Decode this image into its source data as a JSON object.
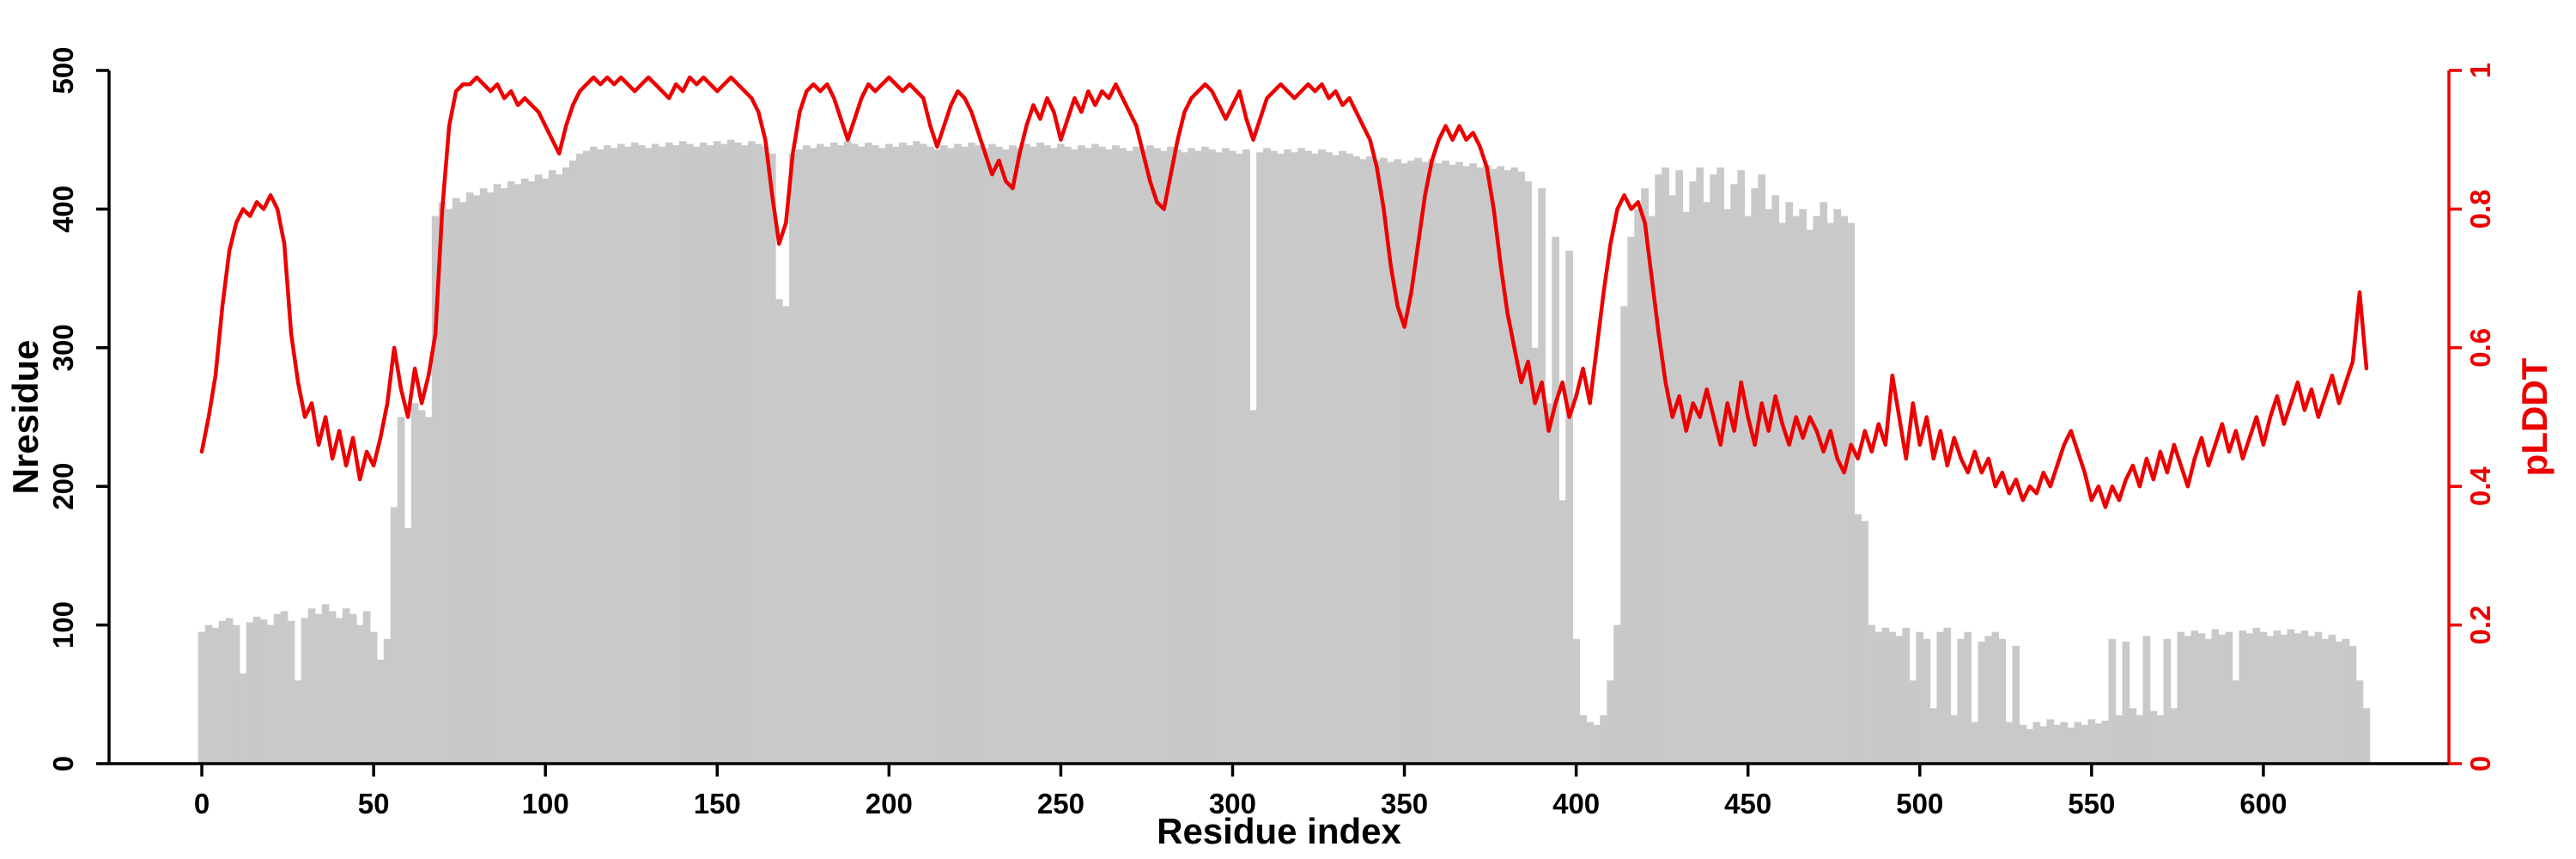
{
  "colors": {
    "bar": "#c9c9c9",
    "line": "#ec0000",
    "axis": "#000000",
    "background": "#ffffff"
  },
  "chart_data": {
    "type": "bar",
    "title": "",
    "xlabel": "Residue index",
    "ylabel_left": "Nresidue",
    "ylabel_right": "pLDDT",
    "x_start": 0,
    "x_step": 2,
    "xlim": [
      -27,
      654
    ],
    "ylim_left": [
      0,
      500
    ],
    "ylim_right": [
      0,
      1
    ],
    "x_ticks": [
      0,
      50,
      100,
      150,
      200,
      250,
      300,
      350,
      400,
      450,
      500,
      550,
      600
    ],
    "y_left_ticks": [
      0,
      100,
      200,
      300,
      400,
      500
    ],
    "y_right_ticks": [
      0,
      0.2,
      0.4,
      0.6,
      0.8,
      1
    ],
    "grid": false,
    "legend": "none",
    "series": [
      {
        "name": "Nresidue",
        "kind": "bar",
        "axis": "left",
        "color": "#c9c9c9",
        "values": [
          95,
          100,
          98,
          103,
          105,
          100,
          65,
          102,
          106,
          104,
          100,
          108,
          110,
          103,
          60,
          105,
          112,
          108,
          115,
          110,
          105,
          112,
          108,
          100,
          110,
          95,
          75,
          90,
          185,
          250,
          170,
          260,
          255,
          250,
          395,
          405,
          400,
          408,
          405,
          412,
          410,
          415,
          412,
          418,
          415,
          420,
          418,
          422,
          420,
          425,
          422,
          428,
          425,
          430,
          435,
          440,
          442,
          445,
          443,
          446,
          444,
          447,
          445,
          448,
          446,
          444,
          447,
          445,
          448,
          446,
          449,
          447,
          445,
          448,
          446,
          449,
          447,
          450,
          448,
          446,
          449,
          447,
          445,
          440,
          335,
          330,
          440,
          443,
          446,
          444,
          447,
          445,
          448,
          446,
          449,
          447,
          445,
          448,
          446,
          444,
          447,
          445,
          448,
          446,
          449,
          447,
          445,
          443,
          446,
          444,
          447,
          445,
          448,
          446,
          444,
          447,
          445,
          443,
          446,
          444,
          447,
          445,
          448,
          446,
          444,
          447,
          445,
          443,
          446,
          444,
          447,
          445,
          443,
          446,
          444,
          442,
          445,
          443,
          446,
          444,
          442,
          445,
          443,
          441,
          444,
          442,
          445,
          443,
          441,
          444,
          442,
          440,
          443,
          255,
          441,
          444,
          442,
          440,
          443,
          441,
          444,
          442,
          440,
          443,
          441,
          439,
          442,
          440,
          438,
          436,
          438,
          435,
          437,
          434,
          436,
          433,
          435,
          437,
          434,
          436,
          433,
          435,
          432,
          434,
          431,
          433,
          430,
          432,
          429,
          431,
          428,
          430,
          427,
          420,
          300,
          415,
          260,
          380,
          190,
          370,
          90,
          35,
          30,
          28,
          35,
          60,
          100,
          330,
          380,
          400,
          415,
          395,
          425,
          430,
          410,
          428,
          398,
          420,
          430,
          405,
          425,
          430,
          400,
          418,
          428,
          395,
          415,
          425,
          400,
          410,
          390,
          405,
          395,
          400,
          385,
          395,
          405,
          390,
          400,
          395,
          390,
          180,
          175,
          100,
          95,
          98,
          95,
          92,
          98,
          60,
          95,
          90,
          40,
          95,
          98,
          35,
          90,
          95,
          30,
          88,
          92,
          95,
          90,
          30,
          85,
          28,
          25,
          30,
          27,
          32,
          28,
          30,
          26,
          30,
          28,
          32,
          29,
          31,
          90,
          35,
          88,
          40,
          35,
          92,
          38,
          35,
          90,
          40,
          95,
          92,
          96,
          94,
          90,
          97,
          93,
          95,
          60,
          96,
          94,
          98,
          95,
          92,
          96,
          93,
          97,
          94,
          96,
          92,
          95,
          90,
          93,
          88,
          90,
          85,
          60,
          40
        ]
      },
      {
        "name": "pLDDT",
        "kind": "line",
        "axis": "right",
        "color": "#ec0000",
        "values": [
          0.45,
          0.5,
          0.56,
          0.66,
          0.74,
          0.78,
          0.8,
          0.79,
          0.81,
          0.8,
          0.82,
          0.8,
          0.75,
          0.62,
          0.55,
          0.5,
          0.52,
          0.46,
          0.5,
          0.44,
          0.48,
          0.43,
          0.47,
          0.41,
          0.45,
          0.43,
          0.47,
          0.52,
          0.6,
          0.54,
          0.5,
          0.57,
          0.52,
          0.56,
          0.62,
          0.8,
          0.92,
          0.97,
          0.98,
          0.98,
          0.99,
          0.98,
          0.97,
          0.98,
          0.96,
          0.97,
          0.95,
          0.96,
          0.95,
          0.94,
          0.92,
          0.9,
          0.88,
          0.92,
          0.95,
          0.97,
          0.98,
          0.99,
          0.98,
          0.99,
          0.98,
          0.99,
          0.98,
          0.97,
          0.98,
          0.99,
          0.98,
          0.97,
          0.96,
          0.98,
          0.97,
          0.99,
          0.98,
          0.99,
          0.98,
          0.97,
          0.98,
          0.99,
          0.98,
          0.97,
          0.96,
          0.94,
          0.9,
          0.82,
          0.75,
          0.78,
          0.88,
          0.94,
          0.97,
          0.98,
          0.97,
          0.98,
          0.96,
          0.93,
          0.9,
          0.93,
          0.96,
          0.98,
          0.97,
          0.98,
          0.99,
          0.98,
          0.97,
          0.98,
          0.97,
          0.96,
          0.92,
          0.89,
          0.92,
          0.95,
          0.97,
          0.96,
          0.94,
          0.91,
          0.88,
          0.85,
          0.87,
          0.84,
          0.83,
          0.88,
          0.92,
          0.95,
          0.93,
          0.96,
          0.94,
          0.9,
          0.93,
          0.96,
          0.94,
          0.97,
          0.95,
          0.97,
          0.96,
          0.98,
          0.96,
          0.94,
          0.92,
          0.88,
          0.84,
          0.81,
          0.8,
          0.85,
          0.9,
          0.94,
          0.96,
          0.97,
          0.98,
          0.97,
          0.95,
          0.93,
          0.95,
          0.97,
          0.93,
          0.9,
          0.93,
          0.96,
          0.97,
          0.98,
          0.97,
          0.96,
          0.97,
          0.98,
          0.97,
          0.98,
          0.96,
          0.97,
          0.95,
          0.96,
          0.94,
          0.92,
          0.9,
          0.86,
          0.8,
          0.72,
          0.66,
          0.63,
          0.68,
          0.75,
          0.82,
          0.87,
          0.9,
          0.92,
          0.9,
          0.92,
          0.9,
          0.91,
          0.89,
          0.86,
          0.8,
          0.72,
          0.65,
          0.6,
          0.55,
          0.58,
          0.52,
          0.55,
          0.48,
          0.52,
          0.55,
          0.5,
          0.53,
          0.57,
          0.52,
          0.6,
          0.68,
          0.75,
          0.8,
          0.82,
          0.8,
          0.81,
          0.78,
          0.7,
          0.62,
          0.55,
          0.5,
          0.53,
          0.48,
          0.52,
          0.5,
          0.54,
          0.5,
          0.46,
          0.52,
          0.48,
          0.55,
          0.5,
          0.46,
          0.52,
          0.48,
          0.53,
          0.49,
          0.46,
          0.5,
          0.47,
          0.5,
          0.48,
          0.45,
          0.48,
          0.44,
          0.42,
          0.46,
          0.44,
          0.48,
          0.45,
          0.49,
          0.46,
          0.56,
          0.5,
          0.44,
          0.52,
          0.46,
          0.5,
          0.44,
          0.48,
          0.43,
          0.47,
          0.44,
          0.42,
          0.45,
          0.42,
          0.44,
          0.4,
          0.42,
          0.39,
          0.41,
          0.38,
          0.4,
          0.39,
          0.42,
          0.4,
          0.43,
          0.46,
          0.48,
          0.45,
          0.42,
          0.38,
          0.4,
          0.37,
          0.4,
          0.38,
          0.41,
          0.43,
          0.4,
          0.44,
          0.41,
          0.45,
          0.42,
          0.46,
          0.43,
          0.4,
          0.44,
          0.47,
          0.43,
          0.46,
          0.49,
          0.45,
          0.48,
          0.44,
          0.47,
          0.5,
          0.46,
          0.5,
          0.53,
          0.49,
          0.52,
          0.55,
          0.51,
          0.54,
          0.5,
          0.53,
          0.56,
          0.52,
          0.55,
          0.58,
          0.68,
          0.57
        ]
      }
    ]
  }
}
